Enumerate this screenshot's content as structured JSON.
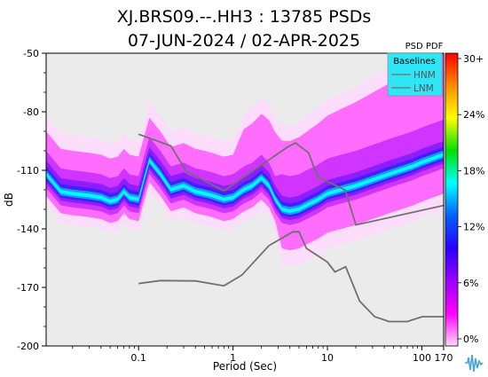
{
  "chart_data": {
    "type": "heatmap",
    "title_line1": "XJ.BRS09.--.HH3 : 13785 PSDs",
    "title_line2": "07-JUN-2024 / 02-APR-2025",
    "xlabel": "Period (Sec)",
    "ylabel": "dB",
    "x_scale": "log",
    "xlim": [
      0.0105,
      170
    ],
    "ylim": [
      -200,
      -50
    ],
    "x_ticks": [
      {
        "value": 0.1,
        "label": "0.1"
      },
      {
        "value": 1,
        "label": "1"
      },
      {
        "value": 10,
        "label": "10"
      },
      {
        "value": 100,
        "label": "100"
      },
      {
        "value": 170,
        "label": "170"
      }
    ],
    "y_ticks": [
      {
        "value": -50,
        "label": "-50"
      },
      {
        "value": -80,
        "label": "-80"
      },
      {
        "value": -110,
        "label": "-110"
      },
      {
        "value": -140,
        "label": "-140"
      },
      {
        "value": -170,
        "label": "-170"
      },
      {
        "value": -200,
        "label": "-200"
      }
    ],
    "colorbar": {
      "title": "PSD PDF",
      "ticks": [
        "30+",
        "24%",
        "18%",
        "12%",
        "6%",
        "0%"
      ],
      "colors": [
        "#ff0000",
        "#ff8c00",
        "#ffff00",
        "#00e000",
        "#00ffff",
        "#0060ff",
        "#2a00ff",
        "#9b00ff",
        "#ff00ff",
        "#ffd8ff"
      ]
    },
    "legend": {
      "title": "Baselines",
      "placement": "top-right",
      "entries": [
        "HNM",
        "LNM"
      ],
      "line_color": "#707070",
      "background": "#2ee6f5"
    },
    "series": [
      {
        "name": "HNM",
        "x": [
          0.1,
          0.22,
          0.32,
          0.8,
          3.8,
          4.6,
          6.3,
          7.9,
          15.4,
          20,
          170
        ],
        "y": [
          -91.5,
          -97.5,
          -110.5,
          -120.5,
          -98,
          -96,
          -101,
          -113.5,
          -120,
          -138,
          -128
        ]
      },
      {
        "name": "LNM",
        "x": [
          0.1,
          0.17,
          0.4,
          0.8,
          1.24,
          2.4,
          4.3,
          5,
          6,
          10,
          12,
          15.6,
          21.9,
          31.6,
          45,
          70,
          101,
          154,
          170
        ],
        "y": [
          -168,
          -166.5,
          -166.7,
          -169.2,
          -163.7,
          -148.6,
          -141.5,
          -141.5,
          -150,
          -157,
          -162.1,
          -159.4,
          -177,
          -185,
          -187.5,
          -187.5,
          -185,
          -185,
          -185
        ]
      },
      {
        "name": "mode",
        "x": [
          0.0105,
          0.015,
          0.02,
          0.03,
          0.04,
          0.05,
          0.06,
          0.07,
          0.08,
          0.1,
          0.13,
          0.17,
          0.22,
          0.3,
          0.4,
          0.5,
          0.6,
          0.8,
          1.0,
          1.3,
          1.6,
          2.0,
          2.4,
          2.8,
          3.3,
          4.0,
          5.0,
          6.0,
          8.0,
          10,
          14,
          20,
          30,
          45,
          60,
          80,
          100,
          130,
          170
        ],
        "y": [
          -112,
          -121,
          -122,
          -123,
          -124,
          -126,
          -125,
          -121,
          -124,
          -125,
          -105,
          -112,
          -120,
          -118,
          -121,
          -122,
          -123,
          -125,
          -124,
          -120,
          -118,
          -114,
          -118,
          -125,
          -130,
          -131,
          -130,
          -128,
          -125,
          -122,
          -120,
          -118,
          -115,
          -112,
          -110,
          -108,
          -106,
          -104,
          -102
        ]
      }
    ]
  }
}
